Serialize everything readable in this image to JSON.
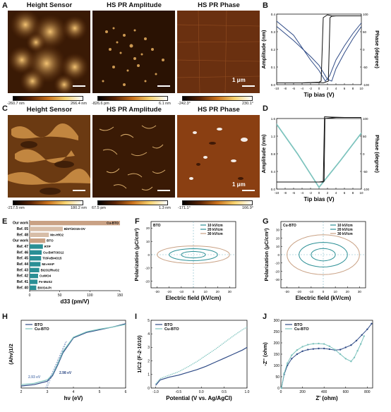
{
  "panel_labels": {
    "a": "A",
    "b": "B",
    "c": "C",
    "d": "D",
    "e": "E",
    "f": "F",
    "g": "G",
    "h": "H",
    "i": "I",
    "j": "J"
  },
  "row_a": {
    "titles": [
      "Height Sensor",
      "HS PR Amplitude",
      "HS PR Phase"
    ],
    "ranges": [
      [
        "-260.7 nm",
        "266.4 nm"
      ],
      [
        "-826.6 pm",
        "6.1 nm"
      ],
      [
        "-242.3°",
        "230.1°"
      ]
    ],
    "scale": "1 μm"
  },
  "row_c": {
    "titles": [
      "Height Sensor",
      "HS PR Amplitude",
      "HS PR Phase"
    ],
    "ranges": [
      [
        "-217.5 nm",
        "180.2 nm"
      ],
      [
        "67.5 pm",
        "1.3 nm"
      ],
      [
        "-171.1°",
        "166.9°"
      ]
    ],
    "scale": "1 μm"
  },
  "colors": {
    "bto": "#2e4a86",
    "cubto": "#7cc3bd",
    "teal": "#2a8f95",
    "beige": "#c9a184",
    "afm_dark": "#3a1a04",
    "afm_light": "#f2c070"
  },
  "chart_data": [
    {
      "id": "B",
      "type": "line",
      "xlabel": "Tip bias (V)",
      "ylabel": "Amplitude (nm)",
      "y2label": "Phase (degree)",
      "xlim": [
        -10,
        10
      ],
      "ylim": [
        0,
        0.4
      ],
      "y2lim": [
        -100,
        100
      ],
      "xticks": [
        "-10",
        "-8",
        "-6",
        "-4",
        "-2",
        "0",
        "2",
        "4",
        "6",
        "8",
        "10"
      ],
      "yticks": [
        "0.0",
        "0.1",
        "0.2",
        "0.3",
        "0.4"
      ],
      "y2ticks": [
        "-100",
        "-50",
        "0",
        "50",
        "100"
      ],
      "series": [
        {
          "axis": "left",
          "x": [
            -10,
            -6,
            -2,
            0,
            1.5,
            2.5,
            4,
            6,
            8,
            10
          ],
          "y": [
            0.36,
            0.28,
            0.14,
            0.08,
            0.02,
            0.05,
            0.14,
            0.22,
            0.29,
            0.35
          ]
        },
        {
          "axis": "left",
          "x": [
            -10,
            -6,
            -2,
            0,
            2,
            3,
            4,
            6,
            8,
            10
          ],
          "y": [
            0.33,
            0.25,
            0.16,
            0.11,
            0.03,
            0.02,
            0.09,
            0.18,
            0.26,
            0.33
          ]
        },
        {
          "axis": "right",
          "x": [
            -10,
            -4,
            0,
            0.5,
            1,
            2,
            3,
            4,
            6,
            10
          ],
          "y": [
            -95,
            -95,
            -93,
            -90,
            90,
            98,
            95,
            95,
            95,
            95
          ]
        },
        {
          "axis": "right",
          "x": [
            10,
            4,
            3,
            2.6,
            2.2,
            1,
            0,
            -4,
            -10
          ],
          "y": [
            95,
            95,
            94,
            90,
            -90,
            -95,
            -94,
            -95,
            -95
          ]
        }
      ]
    },
    {
      "id": "D",
      "type": "line",
      "xlabel": "Tip bias (V)",
      "ylabel": "Amplitude (nm)",
      "y2label": "Phase (degree)",
      "xlim": [
        -10,
        10
      ],
      "ylim": [
        0,
        1.6
      ],
      "y2lim": [
        -100,
        100
      ],
      "xticks": [
        "-10",
        "-8",
        "-6",
        "-4",
        "-2",
        "0",
        "2",
        "4",
        "6",
        "8",
        "10"
      ],
      "yticks": [
        "0.0",
        "0.4",
        "0.8",
        "1.2",
        "1.6"
      ],
      "y2ticks": [
        "-100",
        "-50",
        "0",
        "50",
        "100"
      ],
      "series": [
        {
          "axis": "left",
          "x": [
            -10,
            -5,
            0,
            5,
            10
          ],
          "y": [
            1.48,
            0.8,
            0.05,
            0.65,
            1.28
          ]
        },
        {
          "axis": "left",
          "x": [
            -10,
            -5,
            0,
            5,
            10
          ],
          "y": [
            1.46,
            0.78,
            0.03,
            0.63,
            1.26
          ]
        },
        {
          "axis": "right",
          "x": [
            -10,
            -4,
            0,
            1.0,
            1.3,
            3,
            6,
            10
          ],
          "y": [
            -80,
            -80,
            -80,
            -80,
            105,
            104,
            103,
            103
          ]
        },
        {
          "axis": "right",
          "x": [
            10,
            4,
            1.4,
            1.2,
            0,
            -10
          ],
          "y": [
            103,
            103,
            100,
            -78,
            -80,
            -80
          ]
        }
      ]
    },
    {
      "id": "E",
      "type": "bar",
      "xlabel": "d33 (pm/V)",
      "xlim": [
        0,
        150
      ],
      "xticks": [
        "0",
        "50",
        "100",
        "150"
      ],
      "categories": [
        "Our work",
        "Ref. 05",
        "Ref. 48",
        "Our work",
        "Ref. 47",
        "Ref. 46",
        "Ref. 45",
        "Ref. 44",
        "Ref. 43",
        "Ref. 42",
        "Ref. 41",
        "Ref. 40"
      ],
      "values": [
        150,
        55,
        32,
        26,
        22,
        20,
        19,
        18,
        16,
        14,
        13,
        11
      ],
      "labels": [
        "Cu-BTO",
        "Bi5Ti3O15-OV",
        "Mn-HfO2",
        "BTO",
        "RTP",
        "Cu-Bi4Ti3O12",
        "Ti3FeBi4O15",
        "Mn-HAP",
        "Bi2O2/RuO2",
        "CuWO4",
        "Fe-MoS2",
        "BiVO4-Pt"
      ]
    },
    {
      "id": "F",
      "type": "line",
      "inset": "BTO",
      "xlabel": "Electric field (kV/cm)",
      "ylabel": "Polarization (μC/cm²)",
      "xlim": [
        -35,
        35
      ],
      "ylim": [
        -25,
        25
      ],
      "xticks": [
        "-30",
        "-20",
        "-10",
        "0",
        "10",
        "20",
        "30"
      ],
      "yticks": [
        "-20",
        "-10",
        "0",
        "10",
        "20"
      ],
      "series": [
        {
          "name": "10 kV/cm",
          "Emax": 10,
          "Pmax": 3,
          "Pr": 1.5
        },
        {
          "name": "20 kV/cm",
          "Emax": 20,
          "Pmax": 5.5,
          "Pr": 3
        },
        {
          "name": "30 kV/cm",
          "Emax": 30,
          "Pmax": 8,
          "Pr": 4.5
        }
      ]
    },
    {
      "id": "G",
      "type": "line",
      "inset": "Cu-BTO",
      "xlabel": "Electric field (kV/cm)",
      "ylabel": "Polarization (μC/cm²)",
      "xlim": [
        -35,
        35
      ],
      "ylim": [
        -40,
        40
      ],
      "xticks": [
        "-30",
        "-20",
        "-10",
        "0",
        "10",
        "20",
        "30"
      ],
      "yticks": [
        "-30",
        "-20",
        "-10",
        "0",
        "10",
        "20",
        "30"
      ],
      "series": [
        {
          "name": "10 kV/cm",
          "Emax": 10,
          "Pmax": 9,
          "Pr": 5
        },
        {
          "name": "20 kV/cm",
          "Emax": 20,
          "Pmax": 18,
          "Pr": 10
        },
        {
          "name": "30 kV/cm",
          "Emax": 30,
          "Pmax": 30,
          "Pr": 15
        }
      ]
    },
    {
      "id": "H",
      "type": "line",
      "xlabel": "hν (eV)",
      "ylabel": "(Ahν)1/2",
      "xlim": [
        2,
        6
      ],
      "xticks": [
        "2",
        "3",
        "4",
        "5",
        "6"
      ],
      "annotations": [
        "2.93 eV",
        "2.98 eV"
      ],
      "series": [
        {
          "name": "BTO",
          "x": [
            2,
            2.5,
            3,
            3.2,
            3.4,
            3.6,
            4,
            4.5,
            5,
            5.5,
            6
          ],
          "y": [
            0.03,
            0.05,
            0.1,
            0.18,
            0.34,
            0.52,
            0.74,
            0.82,
            0.86,
            0.9,
            0.95
          ]
        },
        {
          "name": "Cu-BTO",
          "x": [
            2,
            2.5,
            3,
            3.2,
            3.4,
            3.6,
            4,
            4.5,
            5,
            5.5,
            6
          ],
          "y": [
            0.05,
            0.07,
            0.12,
            0.2,
            0.36,
            0.54,
            0.75,
            0.83,
            0.87,
            0.9,
            0.94
          ]
        }
      ]
    },
    {
      "id": "I",
      "type": "line",
      "xlabel": "Potential (V vs. Ag/AgCl)",
      "ylabel": "1/C2 (F-2·1010)",
      "xlim": [
        -1.1,
        1.0
      ],
      "ylim": [
        0,
        5
      ],
      "xticks": [
        "-1.0",
        "-0.5",
        "0.0",
        "0.5",
        "1.0"
      ],
      "yticks": [
        "0",
        "1",
        "2",
        "3",
        "4",
        "5"
      ],
      "series": [
        {
          "name": "BTO",
          "x": [
            -1,
            -0.9,
            -0.7,
            -0.5,
            -0.3,
            -0.1,
            0.1,
            0.3,
            0.5,
            0.7,
            0.9,
            1.0
          ],
          "y": [
            0.2,
            0.6,
            0.8,
            0.95,
            1.15,
            1.35,
            1.6,
            1.9,
            2.2,
            2.5,
            2.8,
            3.0
          ]
        },
        {
          "name": "Cu-BTO",
          "x": [
            -1,
            -0.9,
            -0.7,
            -0.5,
            -0.3,
            -0.1,
            0.1,
            0.3,
            0.5,
            0.7,
            0.9,
            1.0
          ],
          "y": [
            0.3,
            0.7,
            0.95,
            1.2,
            1.55,
            1.95,
            2.4,
            2.85,
            3.35,
            3.85,
            4.3,
            4.5
          ]
        }
      ]
    },
    {
      "id": "J",
      "type": "scatter",
      "xlabel": "Z' (ohm)",
      "ylabel": "-Z'' (ohm)",
      "xlim": [
        0,
        850
      ],
      "ylim": [
        0,
        300
      ],
      "xticks": [
        "0",
        "200",
        "400",
        "600",
        "800"
      ],
      "yticks": [
        "0",
        "50",
        "100",
        "150",
        "200",
        "250",
        "300"
      ],
      "series": [
        {
          "name": "BTO",
          "x": [
            5,
            30,
            60,
            100,
            150,
            200,
            250,
            300,
            350,
            400,
            450,
            500,
            550,
            600,
            650,
            700,
            750,
            800,
            840
          ],
          "y": [
            0,
            60,
            100,
            130,
            150,
            163,
            170,
            173,
            175,
            175,
            172,
            168,
            170,
            180,
            190,
            210,
            235,
            260,
            285
          ]
        },
        {
          "name": "Cu-BTO",
          "x": [
            5,
            30,
            60,
            100,
            150,
            200,
            250,
            300,
            350,
            400,
            450,
            500,
            550,
            600,
            650,
            680,
            710,
            740,
            770
          ],
          "y": [
            0,
            65,
            110,
            145,
            168,
            183,
            192,
            196,
            197,
            195,
            185,
            170,
            150,
            130,
            118,
            135,
            165,
            195,
            230
          ]
        }
      ]
    }
  ],
  "legends": {
    "h": [
      "BTO",
      "Cu-BTO"
    ],
    "i": [
      "BTO",
      "Cu-BTO"
    ],
    "j": [
      "BTO",
      "Cu-BTO"
    ]
  }
}
